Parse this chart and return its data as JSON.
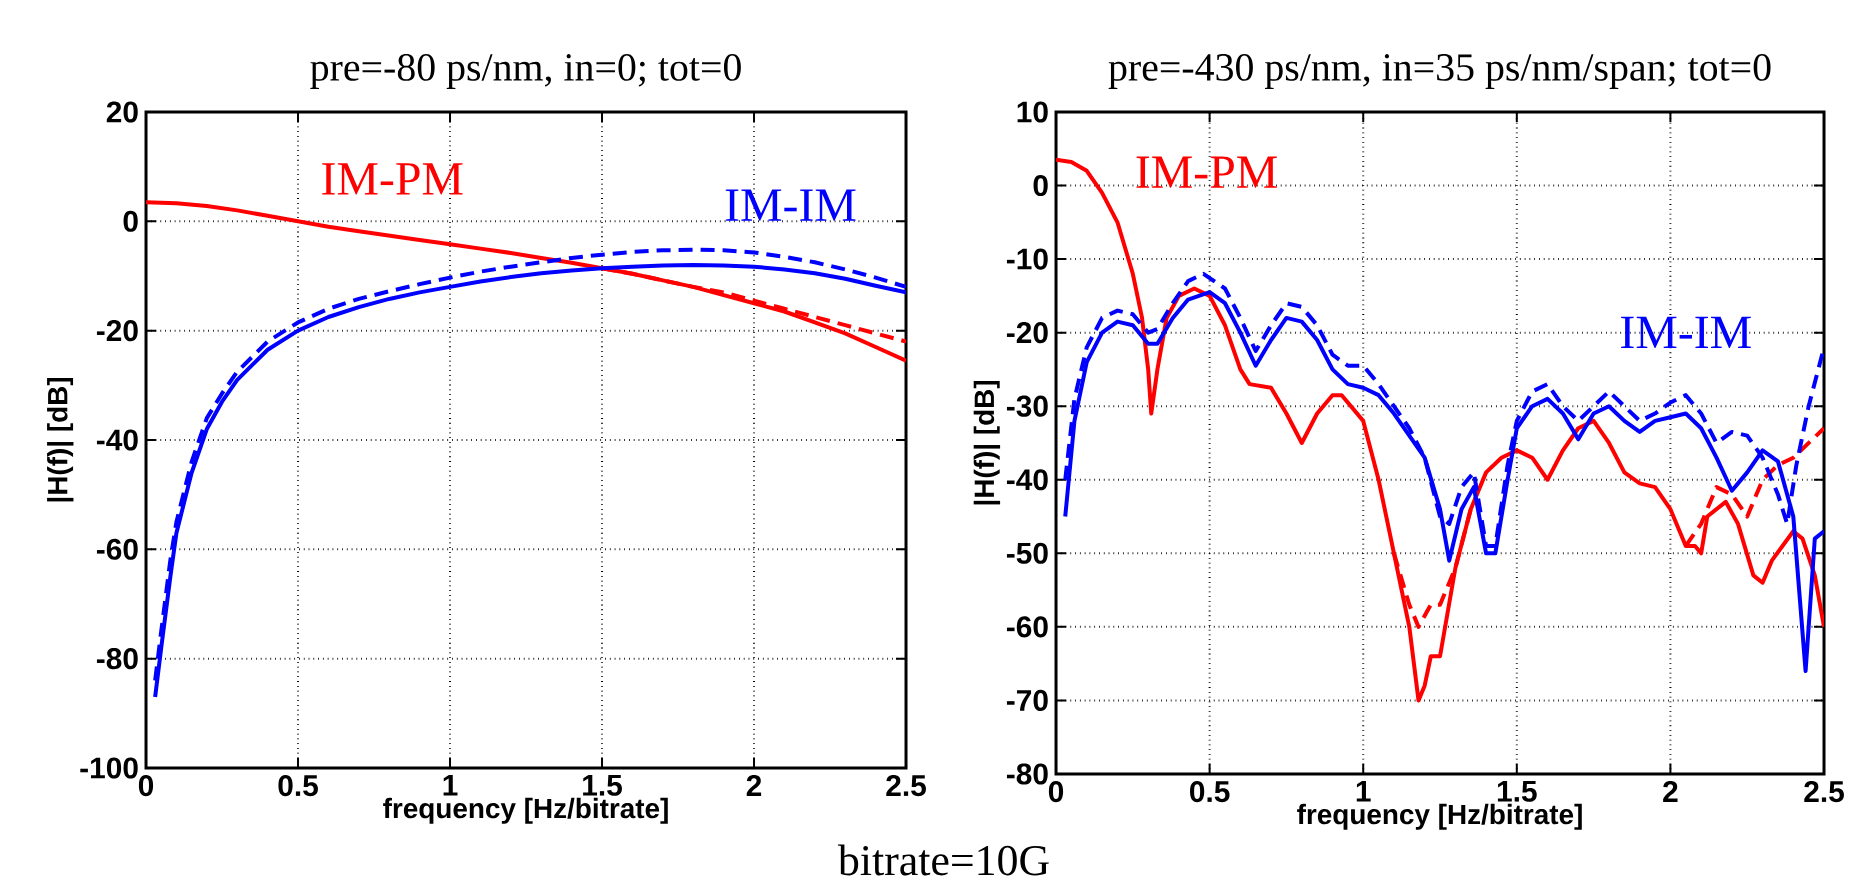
{
  "chart_data": [
    {
      "type": "line",
      "title": "pre=-80 ps/nm, in=0; tot=0",
      "xlabel": "frequency  [Hz/bitrate]",
      "ylabel": "|H(f)|   [dB]",
      "xlim": [
        0,
        2.5
      ],
      "ylim": [
        -100,
        20
      ],
      "xticks": [
        0,
        0.5,
        1,
        1.5,
        2,
        2.5
      ],
      "yticks": [
        -100,
        -80,
        -60,
        -40,
        -20,
        0,
        20
      ],
      "grid": true,
      "annotations": [
        "bitrate=10G"
      ],
      "series": [
        {
          "name": "IM-PM",
          "color": "#ff0000",
          "line_style": "solid",
          "x": [
            0,
            0.1,
            0.2,
            0.3,
            0.4,
            0.5,
            0.6,
            0.7,
            0.8,
            0.9,
            1.0,
            1.1,
            1.2,
            1.3,
            1.4,
            1.5,
            1.6,
            1.7,
            1.8,
            1.9,
            2.0,
            2.1,
            2.2,
            2.3,
            2.4,
            2.5
          ],
          "values": [
            3.5,
            3.3,
            2.8,
            2,
            1,
            0,
            -1,
            -1.8,
            -2.6,
            -3.4,
            -4.2,
            -5,
            -5.8,
            -6.7,
            -7.6,
            -8.6,
            -9.6,
            -10.8,
            -12,
            -13.5,
            -15,
            -16.5,
            -18.5,
            -20.5,
            -23,
            -25.5
          ]
        },
        {
          "color": "#ff0000",
          "line_style": "dashed",
          "x": [
            1.5,
            1.6,
            1.7,
            1.8,
            1.9,
            2.0,
            2.1,
            2.2,
            2.3,
            2.4,
            2.5
          ],
          "values": [
            -8.6,
            -9.6,
            -10.8,
            -12,
            -13,
            -14.5,
            -16,
            -17.5,
            -19,
            -20.5,
            -22
          ]
        },
        {
          "name": "IM-IM",
          "color": "#0000ff",
          "line_style": "solid",
          "x": [
            0.03,
            0.05,
            0.08,
            0.1,
            0.15,
            0.2,
            0.25,
            0.3,
            0.4,
            0.5,
            0.6,
            0.7,
            0.8,
            0.9,
            1.0,
            1.1,
            1.2,
            1.3,
            1.4,
            1.5,
            1.6,
            1.7,
            1.8,
            1.9,
            2.0,
            2.1,
            2.2,
            2.3,
            2.4,
            2.5
          ],
          "values": [
            -87,
            -78,
            -65,
            -57,
            -46,
            -38,
            -33,
            -29,
            -23.5,
            -20,
            -17.5,
            -15.7,
            -14.2,
            -13,
            -12,
            -11,
            -10.2,
            -9.5,
            -9,
            -8.6,
            -8.3,
            -8.1,
            -8,
            -8.1,
            -8.3,
            -8.8,
            -9.5,
            -10.5,
            -11.8,
            -13
          ]
        },
        {
          "color": "#0000ff",
          "line_style": "dashed",
          "x": [
            0.03,
            0.05,
            0.08,
            0.1,
            0.15,
            0.2,
            0.25,
            0.3,
            0.4,
            0.5,
            0.6,
            0.7,
            0.8,
            0.9,
            1.0,
            1.1,
            1.2,
            1.3,
            1.4,
            1.5,
            1.6,
            1.7,
            1.8,
            1.9,
            2.0,
            2.1,
            2.2,
            2.3,
            2.4,
            2.5
          ],
          "values": [
            -84,
            -75,
            -62,
            -55,
            -44,
            -36,
            -31.5,
            -27.5,
            -22,
            -18.5,
            -16,
            -14.2,
            -12.8,
            -11.5,
            -10.3,
            -9.2,
            -8.3,
            -7.5,
            -6.7,
            -6.1,
            -5.6,
            -5.3,
            -5.2,
            -5.3,
            -5.7,
            -6.5,
            -7.5,
            -8.8,
            -10.3,
            -12
          ]
        }
      ]
    },
    {
      "type": "line",
      "title": "pre=-430 ps/nm, in=35 ps/nm/span; tot=0",
      "xlabel": "frequency  [Hz/bitrate]",
      "ylabel": "|H(f)|   [dB]",
      "xlim": [
        0,
        2.5
      ],
      "ylim": [
        -80,
        10
      ],
      "xticks": [
        0,
        0.5,
        1,
        1.5,
        2,
        2.5
      ],
      "yticks": [
        -80,
        -70,
        -60,
        -50,
        -40,
        -30,
        -20,
        -10,
        0,
        10
      ],
      "grid": true,
      "series": [
        {
          "name": "IM-PM",
          "color": "#ff0000",
          "line_style": "solid",
          "x": [
            0,
            0.05,
            0.1,
            0.15,
            0.2,
            0.25,
            0.28,
            0.3,
            0.31,
            0.33,
            0.36,
            0.4,
            0.45,
            0.5,
            0.55,
            0.6,
            0.63,
            0.7,
            0.75,
            0.8,
            0.85,
            0.9,
            0.93,
            1.0,
            1.05,
            1.1,
            1.15,
            1.18,
            1.2,
            1.22,
            1.25,
            1.3,
            1.35,
            1.4,
            1.45,
            1.5,
            1.55,
            1.6,
            1.65,
            1.7,
            1.75,
            1.8,
            1.85,
            1.9,
            1.95,
            2.0,
            2.05,
            2.08,
            2.1,
            2.12,
            2.18,
            2.22,
            2.27,
            2.3,
            2.33,
            2.4,
            2.43,
            2.47,
            2.5
          ],
          "values": [
            3.5,
            3.2,
            2,
            -1,
            -5,
            -12,
            -18,
            -25,
            -31,
            -25,
            -18,
            -15,
            -14,
            -15,
            -19,
            -25,
            -27,
            -27.5,
            -31,
            -35,
            -31,
            -28.5,
            -28.5,
            -32,
            -40,
            -50,
            -60,
            -70,
            -68,
            -64,
            -64,
            -52,
            -44,
            -39,
            -37,
            -36,
            -37,
            -40,
            -36,
            -33,
            -32,
            -35,
            -39,
            -40.5,
            -41,
            -44,
            -49,
            -49,
            -50,
            -45,
            -43,
            -46,
            -53,
            -54,
            -51,
            -47,
            -48,
            -53,
            -60
          ]
        },
        {
          "color": "#ff0000",
          "line_style": "dashed",
          "x": [
            1.1,
            1.15,
            1.18,
            1.22,
            1.25,
            1.3,
            1.35,
            1.7,
            2.05,
            2.1,
            2.15,
            2.2,
            2.25,
            2.3,
            2.35,
            2.4,
            2.45,
            2.5
          ],
          "values": [
            -50,
            -57,
            -60,
            -57,
            -57,
            -52,
            -44,
            null,
            -49,
            -46,
            -41,
            -42,
            -45,
            -40,
            -38,
            -37,
            -35,
            -33
          ]
        },
        {
          "name": "IM-IM",
          "color": "#0000ff",
          "line_style": "solid",
          "x": [
            0.03,
            0.06,
            0.1,
            0.15,
            0.2,
            0.25,
            0.3,
            0.33,
            0.38,
            0.43,
            0.5,
            0.55,
            0.6,
            0.65,
            0.7,
            0.75,
            0.8,
            0.85,
            0.9,
            0.95,
            1.0,
            1.05,
            1.1,
            1.15,
            1.2,
            1.25,
            1.28,
            1.32,
            1.36,
            1.4,
            1.43,
            1.47,
            1.5,
            1.55,
            1.6,
            1.65,
            1.7,
            1.75,
            1.8,
            1.85,
            1.9,
            1.95,
            2.0,
            2.05,
            2.1,
            2.15,
            2.2,
            2.25,
            2.3,
            2.35,
            2.4,
            2.44,
            2.47,
            2.5
          ],
          "values": [
            -45,
            -32,
            -24,
            -20,
            -18.5,
            -19,
            -21.5,
            -21.5,
            -18,
            -15.5,
            -14.5,
            -16,
            -20,
            -24.5,
            -21,
            -18,
            -18.5,
            -21,
            -25,
            -27,
            -27.5,
            -28.5,
            -31,
            -34,
            -37,
            -44,
            -51,
            -44,
            -41,
            -50,
            -50,
            -40,
            -33,
            -30,
            -29,
            -31,
            -34.5,
            -31,
            -30,
            -32,
            -33.5,
            -32,
            -31.5,
            -31,
            -33,
            -37,
            -41.5,
            -39,
            -36,
            -37.5,
            -45,
            -66,
            -48,
            -47
          ]
        },
        {
          "color": "#0000ff",
          "line_style": "dashed",
          "x": [
            0.03,
            0.06,
            0.1,
            0.15,
            0.2,
            0.25,
            0.3,
            0.33,
            0.38,
            0.43,
            0.48,
            0.55,
            0.6,
            0.65,
            0.7,
            0.75,
            0.8,
            0.85,
            0.9,
            0.95,
            1.0,
            1.05,
            1.1,
            1.15,
            1.2,
            1.25,
            1.28,
            1.32,
            1.36,
            1.4,
            1.43,
            1.47,
            1.5,
            1.55,
            1.6,
            1.65,
            1.7,
            1.75,
            1.8,
            1.85,
            1.9,
            1.95,
            2.0,
            2.05,
            2.1,
            2.15,
            2.2,
            2.25,
            2.3,
            2.35,
            2.38,
            2.41,
            2.45,
            2.5
          ],
          "values": [
            -40,
            -29,
            -22,
            -18,
            -17,
            -17.5,
            -20,
            -19.5,
            -16,
            -13,
            -12,
            -14,
            -18,
            -22.5,
            -19,
            -16,
            -16.5,
            -19,
            -23,
            -24.5,
            -24.5,
            -27,
            -30,
            -33,
            -37,
            -45,
            -46,
            -41,
            -39,
            -49,
            -49,
            -38,
            -32,
            -28,
            -27,
            -30,
            -32,
            -30,
            -28,
            -30,
            -32,
            -31,
            -29.5,
            -28.5,
            -31,
            -35,
            -33.5,
            -34,
            -37,
            -42,
            -46,
            -38,
            -30,
            -22
          ]
        }
      ]
    }
  ]
}
